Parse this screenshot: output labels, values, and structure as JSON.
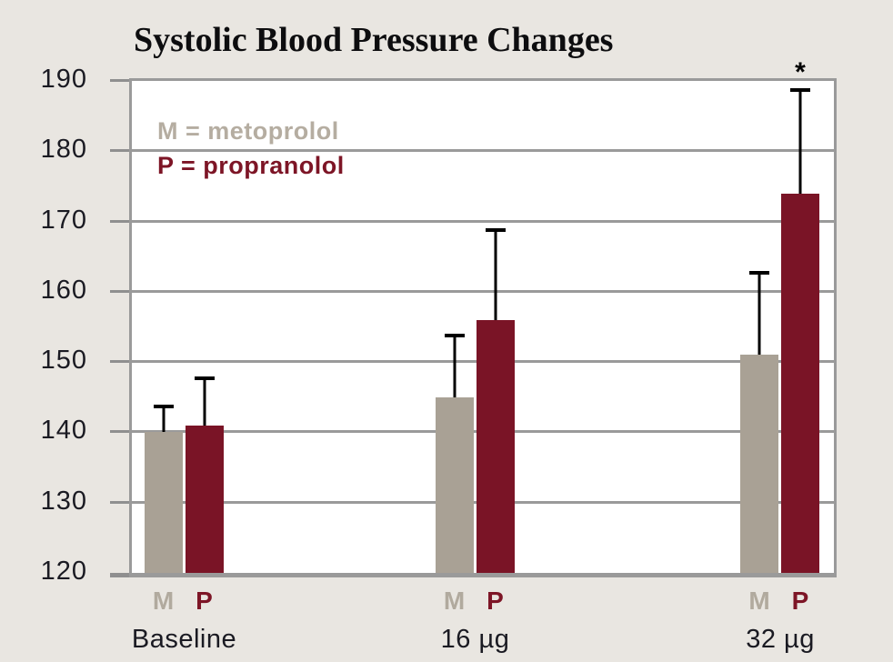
{
  "colors": {
    "background": "#e9e6e1",
    "plot_background": "#ffffff",
    "plot_border": "#9a9a9a",
    "grid": "#9a9a9a",
    "tick": "#8f8f8f",
    "error_bar": "#000000",
    "axis_text": "#1a1a22",
    "title_text": "#0d0d0f"
  },
  "legend": {
    "items": [
      {
        "label": "M = metoprolol",
        "color": "#b5ada1"
      },
      {
        "label": "P = propranolol",
        "color": "#7d1526"
      }
    ]
  },
  "chart_data": {
    "type": "bar",
    "title": "Systolic Blood Pressure Changes",
    "categories": [
      "Baseline",
      "16 µg",
      "32 µg"
    ],
    "series": [
      {
        "name": "metoprolol",
        "letter": "M",
        "bar_color": "#a9a195",
        "letter_color": "#b1aa9e",
        "values": [
          140,
          145,
          151
        ],
        "error_upper": [
          144,
          154,
          163
        ]
      },
      {
        "name": "propranolol",
        "letter": "P",
        "bar_color": "#7a1426",
        "letter_color": "#7d1526",
        "values": [
          141,
          156,
          174
        ],
        "error_upper": [
          148,
          169,
          189
        ]
      }
    ],
    "ylim": [
      120,
      190
    ],
    "yticks": [
      120,
      130,
      140,
      150,
      160,
      170,
      180,
      190
    ],
    "grid": true,
    "legend_position": "top-left-inside",
    "annotations": [
      {
        "text": "*",
        "category_index": 2,
        "series_index": 1
      }
    ]
  }
}
